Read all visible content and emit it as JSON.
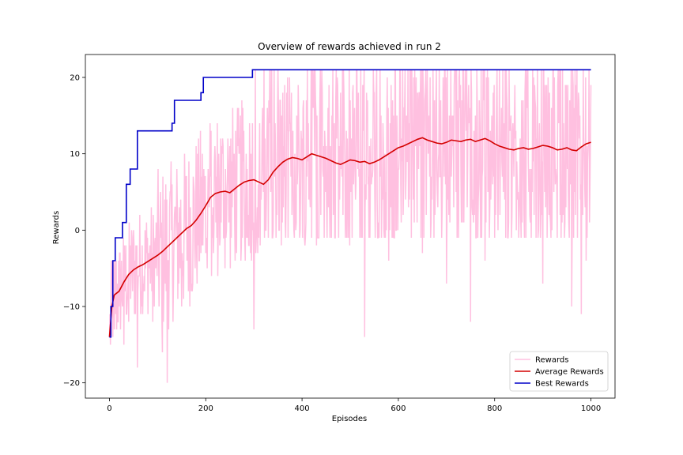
{
  "chart_data": {
    "type": "line",
    "title": "Overview of rewards achieved in run 2",
    "xlabel": "Episodes",
    "ylabel": "Rewards",
    "xlim": [
      -50,
      1050
    ],
    "ylim": [
      -22,
      23
    ],
    "xticks": [
      0,
      200,
      400,
      600,
      800,
      1000
    ],
    "yticks": [
      -20,
      -10,
      0,
      10,
      20
    ],
    "xtick_labels": [
      "0",
      "200",
      "400",
      "600",
      "800",
      "1000"
    ],
    "ytick_labels": [
      "−20",
      "−10",
      "0",
      "10",
      "20"
    ],
    "grid": false,
    "legend": {
      "position": "lower-right"
    },
    "series": [
      {
        "name": "Rewards",
        "color": "#ffc0e0",
        "style": "noisy",
        "episodes": 1000,
        "min": -20,
        "max": 21,
        "sample_points": [
          [
            0,
            -14
          ],
          [
            10,
            -13
          ],
          [
            20,
            -10
          ],
          [
            30,
            -15
          ],
          [
            40,
            -12
          ],
          [
            58,
            -18
          ],
          [
            90,
            -12
          ],
          [
            110,
            -16
          ],
          [
            120,
            -20
          ],
          [
            150,
            -10
          ],
          [
            200,
            -3
          ],
          [
            300,
            -13
          ],
          [
            350,
            21
          ],
          [
            430,
            -2
          ],
          [
            530,
            -14
          ],
          [
            580,
            -4
          ],
          [
            620,
            21
          ],
          [
            650,
            -3
          ],
          [
            700,
            -7
          ],
          [
            750,
            -12
          ],
          [
            780,
            -4
          ],
          [
            810,
            21
          ],
          [
            850,
            -1
          ],
          [
            900,
            -7
          ],
          [
            960,
            -10
          ],
          [
            980,
            -11
          ],
          [
            990,
            -4
          ],
          [
            1000,
            19
          ]
        ]
      },
      {
        "name": "Average Rewards",
        "color": "#d40000",
        "x": [
          0,
          5,
          10,
          20,
          30,
          40,
          50,
          60,
          70,
          80,
          90,
          100,
          110,
          120,
          130,
          140,
          150,
          160,
          170,
          180,
          190,
          200,
          210,
          220,
          230,
          240,
          250,
          260,
          270,
          280,
          290,
          300,
          310,
          320,
          330,
          340,
          350,
          360,
          370,
          380,
          390,
          400,
          410,
          420,
          430,
          440,
          450,
          460,
          470,
          480,
          490,
          500,
          510,
          520,
          530,
          540,
          550,
          560,
          570,
          580,
          590,
          600,
          610,
          620,
          630,
          640,
          650,
          660,
          670,
          680,
          690,
          700,
          710,
          720,
          730,
          740,
          750,
          760,
          770,
          780,
          790,
          800,
          810,
          820,
          830,
          840,
          850,
          860,
          870,
          880,
          890,
          900,
          910,
          920,
          930,
          940,
          950,
          960,
          970,
          980,
          990,
          1000
        ],
        "y": [
          -14,
          -10,
          -8.5,
          -8,
          -6.8,
          -5.8,
          -5.2,
          -4.8,
          -4.5,
          -4.1,
          -3.7,
          -3.3,
          -2.8,
          -2.2,
          -1.6,
          -1,
          -0.4,
          0.2,
          0.6,
          1.3,
          2.2,
          3.2,
          4.3,
          4.8,
          5,
          5.1,
          4.9,
          5.4,
          5.9,
          6.3,
          6.5,
          6.6,
          6.3,
          6,
          6.6,
          7.6,
          8.3,
          8.9,
          9.3,
          9.5,
          9.4,
          9.2,
          9.6,
          10,
          9.8,
          9.6,
          9.4,
          9.1,
          8.8,
          8.6,
          8.9,
          9.2,
          9.1,
          8.9,
          9,
          8.7,
          8.9,
          9.2,
          9.6,
          10,
          10.4,
          10.8,
          11,
          11.3,
          11.6,
          11.9,
          12.1,
          11.8,
          11.6,
          11.4,
          11.3,
          11.5,
          11.8,
          11.7,
          11.6,
          11.8,
          11.9,
          11.6,
          11.8,
          12,
          11.7,
          11.3,
          11,
          10.8,
          10.6,
          10.5,
          10.7,
          10.8,
          10.6,
          10.7,
          10.9,
          11.1,
          11,
          10.8,
          10.5,
          10.6,
          10.8,
          10.5,
          10.4,
          10.9,
          11.3,
          11.5
        ]
      },
      {
        "name": "Best Rewards",
        "color": "#0000c8",
        "steps": [
          [
            0,
            -14
          ],
          [
            3,
            -10
          ],
          [
            7,
            -4
          ],
          [
            12,
            -1
          ],
          [
            27,
            1
          ],
          [
            35,
            6
          ],
          [
            43,
            8
          ],
          [
            58,
            13
          ],
          [
            130,
            14
          ],
          [
            135,
            17
          ],
          [
            190,
            18
          ],
          [
            195,
            20
          ],
          [
            297,
            21
          ],
          [
            1000,
            21
          ]
        ]
      }
    ]
  }
}
